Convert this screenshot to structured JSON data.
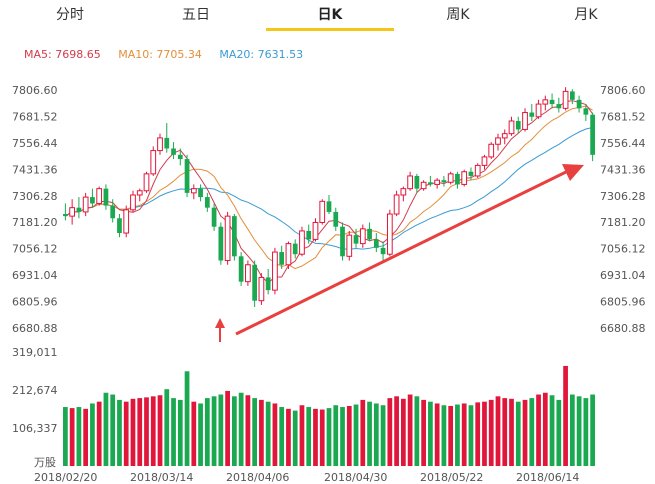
{
  "tabs": [
    {
      "label": "分时",
      "active": false
    },
    {
      "label": "五日",
      "active": false
    },
    {
      "label": "日K",
      "active": true
    },
    {
      "label": "周K",
      "active": false
    },
    {
      "label": "月K",
      "active": false
    }
  ],
  "ma_legend": {
    "ma5": "MA5: 7698.65",
    "ma10": "MA10: 7705.34",
    "ma20": "MA20: 7631.53"
  },
  "colors": {
    "up": "#e0163b",
    "down": "#1aa950",
    "ma5": "#d23c4b",
    "ma10": "#e38f3b",
    "ma20": "#3a9bd5",
    "arrow": "#e8403f",
    "tab_underline": "#f5c518"
  },
  "chart_data": {
    "type": "candlestick",
    "price_ticks": [
      "7806.60",
      "7681.52",
      "7556.44",
      "7431.36",
      "7306.28",
      "7181.20",
      "7056.12",
      "6931.04",
      "6805.96",
      "6680.88"
    ],
    "price_range": [
      6680.88,
      7806.6
    ],
    "volume_ticks": [
      "319,011",
      "212,674",
      "106,337"
    ],
    "volume_unit": "万股",
    "volume_range": [
      0,
      319011
    ],
    "date_ticks": [
      "2018/02/20",
      "2018/03/14",
      "2018/04/06",
      "2018/04/30",
      "2018/05/22",
      "2018/06/14"
    ],
    "candles": [
      {
        "o": 7220,
        "h": 7270,
        "l": 7190,
        "c": 7210,
        "v": 165000
      },
      {
        "o": 7210,
        "h": 7290,
        "l": 7170,
        "c": 7250,
        "v": 162000
      },
      {
        "o": 7250,
        "h": 7300,
        "l": 7200,
        "c": 7230,
        "v": 165000
      },
      {
        "o": 7230,
        "h": 7320,
        "l": 7210,
        "c": 7300,
        "v": 160000
      },
      {
        "o": 7300,
        "h": 7340,
        "l": 7250,
        "c": 7270,
        "v": 175000
      },
      {
        "o": 7270,
        "h": 7350,
        "l": 7260,
        "c": 7340,
        "v": 180000
      },
      {
        "o": 7340,
        "h": 7360,
        "l": 7240,
        "c": 7260,
        "v": 205000
      },
      {
        "o": 7260,
        "h": 7290,
        "l": 7180,
        "c": 7200,
        "v": 200000
      },
      {
        "o": 7200,
        "h": 7220,
        "l": 7110,
        "c": 7130,
        "v": 185000
      },
      {
        "o": 7130,
        "h": 7260,
        "l": 7110,
        "c": 7240,
        "v": 180000
      },
      {
        "o": 7240,
        "h": 7330,
        "l": 7230,
        "c": 7310,
        "v": 188000
      },
      {
        "o": 7310,
        "h": 7340,
        "l": 7280,
        "c": 7330,
        "v": 190000
      },
      {
        "o": 7330,
        "h": 7420,
        "l": 7320,
        "c": 7410,
        "v": 192000
      },
      {
        "o": 7410,
        "h": 7540,
        "l": 7400,
        "c": 7520,
        "v": 195000
      },
      {
        "o": 7520,
        "h": 7600,
        "l": 7500,
        "c": 7580,
        "v": 198000
      },
      {
        "o": 7580,
        "h": 7650,
        "l": 7510,
        "c": 7530,
        "v": 215000
      },
      {
        "o": 7530,
        "h": 7560,
        "l": 7480,
        "c": 7500,
        "v": 190000
      },
      {
        "o": 7500,
        "h": 7530,
        "l": 7450,
        "c": 7480,
        "v": 185000
      },
      {
        "o": 7480,
        "h": 7500,
        "l": 7300,
        "c": 7320,
        "v": 265000
      },
      {
        "o": 7320,
        "h": 7360,
        "l": 7290,
        "c": 7340,
        "v": 180000
      },
      {
        "o": 7340,
        "h": 7360,
        "l": 7280,
        "c": 7300,
        "v": 175000
      },
      {
        "o": 7300,
        "h": 7320,
        "l": 7230,
        "c": 7250,
        "v": 190000
      },
      {
        "o": 7250,
        "h": 7270,
        "l": 7140,
        "c": 7160,
        "v": 195000
      },
      {
        "o": 7160,
        "h": 7180,
        "l": 6980,
        "c": 7000,
        "v": 200000
      },
      {
        "o": 7000,
        "h": 7230,
        "l": 6980,
        "c": 7210,
        "v": 210000
      },
      {
        "o": 7210,
        "h": 7220,
        "l": 7000,
        "c": 7020,
        "v": 195000
      },
      {
        "o": 7020,
        "h": 7040,
        "l": 6880,
        "c": 6900,
        "v": 205000
      },
      {
        "o": 6900,
        "h": 7000,
        "l": 6880,
        "c": 6980,
        "v": 198000
      },
      {
        "o": 6980,
        "h": 7000,
        "l": 6780,
        "c": 6810,
        "v": 190000
      },
      {
        "o": 6810,
        "h": 6940,
        "l": 6790,
        "c": 6920,
        "v": 185000
      },
      {
        "o": 6920,
        "h": 6960,
        "l": 6840,
        "c": 6860,
        "v": 180000
      },
      {
        "o": 6860,
        "h": 7060,
        "l": 6840,
        "c": 7040,
        "v": 175000
      },
      {
        "o": 7040,
        "h": 7070,
        "l": 6960,
        "c": 6980,
        "v": 165000
      },
      {
        "o": 6980,
        "h": 7090,
        "l": 6960,
        "c": 7080,
        "v": 160000
      },
      {
        "o": 7080,
        "h": 7100,
        "l": 7010,
        "c": 7030,
        "v": 155000
      },
      {
        "o": 7030,
        "h": 7160,
        "l": 7020,
        "c": 7140,
        "v": 170000
      },
      {
        "o": 7140,
        "h": 7170,
        "l": 7080,
        "c": 7100,
        "v": 165000
      },
      {
        "o": 7100,
        "h": 7200,
        "l": 7090,
        "c": 7180,
        "v": 160000
      },
      {
        "o": 7180,
        "h": 7290,
        "l": 7170,
        "c": 7280,
        "v": 158000
      },
      {
        "o": 7280,
        "h": 7310,
        "l": 7220,
        "c": 7230,
        "v": 162000
      },
      {
        "o": 7230,
        "h": 7250,
        "l": 7140,
        "c": 7160,
        "v": 170000
      },
      {
        "o": 7160,
        "h": 7180,
        "l": 7000,
        "c": 7020,
        "v": 165000
      },
      {
        "o": 7020,
        "h": 7140,
        "l": 7000,
        "c": 7120,
        "v": 168000
      },
      {
        "o": 7120,
        "h": 7150,
        "l": 7060,
        "c": 7080,
        "v": 172000
      },
      {
        "o": 7080,
        "h": 7170,
        "l": 7060,
        "c": 7150,
        "v": 185000
      },
      {
        "o": 7150,
        "h": 7180,
        "l": 7090,
        "c": 7100,
        "v": 180000
      },
      {
        "o": 7100,
        "h": 7130,
        "l": 7040,
        "c": 7060,
        "v": 175000
      },
      {
        "o": 7060,
        "h": 7090,
        "l": 7000,
        "c": 7030,
        "v": 170000
      },
      {
        "o": 7030,
        "h": 7240,
        "l": 7020,
        "c": 7220,
        "v": 190000
      },
      {
        "o": 7220,
        "h": 7330,
        "l": 7210,
        "c": 7310,
        "v": 195000
      },
      {
        "o": 7310,
        "h": 7350,
        "l": 7280,
        "c": 7340,
        "v": 188000
      },
      {
        "o": 7340,
        "h": 7420,
        "l": 7330,
        "c": 7400,
        "v": 200000
      },
      {
        "o": 7400,
        "h": 7410,
        "l": 7320,
        "c": 7340,
        "v": 195000
      },
      {
        "o": 7340,
        "h": 7380,
        "l": 7330,
        "c": 7370,
        "v": 185000
      },
      {
        "o": 7370,
        "h": 7400,
        "l": 7350,
        "c": 7360,
        "v": 180000
      },
      {
        "o": 7360,
        "h": 7390,
        "l": 7340,
        "c": 7380,
        "v": 175000
      },
      {
        "o": 7380,
        "h": 7400,
        "l": 7350,
        "c": 7370,
        "v": 170000
      },
      {
        "o": 7370,
        "h": 7420,
        "l": 7360,
        "c": 7410,
        "v": 168000
      },
      {
        "o": 7410,
        "h": 7420,
        "l": 7340,
        "c": 7360,
        "v": 172000
      },
      {
        "o": 7360,
        "h": 7430,
        "l": 7350,
        "c": 7420,
        "v": 175000
      },
      {
        "o": 7420,
        "h": 7440,
        "l": 7380,
        "c": 7400,
        "v": 170000
      },
      {
        "o": 7400,
        "h": 7460,
        "l": 7390,
        "c": 7450,
        "v": 178000
      },
      {
        "o": 7450,
        "h": 7500,
        "l": 7430,
        "c": 7490,
        "v": 180000
      },
      {
        "o": 7490,
        "h": 7560,
        "l": 7480,
        "c": 7550,
        "v": 185000
      },
      {
        "o": 7550,
        "h": 7600,
        "l": 7520,
        "c": 7580,
        "v": 195000
      },
      {
        "o": 7580,
        "h": 7620,
        "l": 7550,
        "c": 7600,
        "v": 190000
      },
      {
        "o": 7600,
        "h": 7680,
        "l": 7590,
        "c": 7660,
        "v": 188000
      },
      {
        "o": 7660,
        "h": 7680,
        "l": 7600,
        "c": 7620,
        "v": 180000
      },
      {
        "o": 7620,
        "h": 7720,
        "l": 7610,
        "c": 7700,
        "v": 185000
      },
      {
        "o": 7700,
        "h": 7740,
        "l": 7660,
        "c": 7680,
        "v": 190000
      },
      {
        "o": 7680,
        "h": 7760,
        "l": 7670,
        "c": 7740,
        "v": 200000
      },
      {
        "o": 7740,
        "h": 7780,
        "l": 7710,
        "c": 7760,
        "v": 205000
      },
      {
        "o": 7760,
        "h": 7790,
        "l": 7720,
        "c": 7740,
        "v": 198000
      },
      {
        "o": 7740,
        "h": 7770,
        "l": 7700,
        "c": 7720,
        "v": 185000
      },
      {
        "o": 7720,
        "h": 7820,
        "l": 7710,
        "c": 7800,
        "v": 280000
      },
      {
        "o": 7800,
        "h": 7810,
        "l": 7740,
        "c": 7760,
        "v": 200000
      },
      {
        "o": 7760,
        "h": 7780,
        "l": 7700,
        "c": 7720,
        "v": 195000
      },
      {
        "o": 7720,
        "h": 7740,
        "l": 7660,
        "c": 7690,
        "v": 190000
      },
      {
        "o": 7690,
        "h": 7700,
        "l": 7470,
        "c": 7500,
        "v": 200000
      }
    ]
  }
}
